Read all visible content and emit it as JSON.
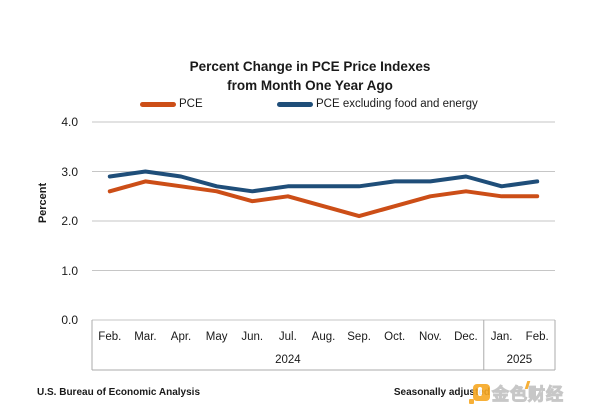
{
  "title": {
    "line1": "Percent Change in PCE Price Indexes",
    "line2": "from Month One Year Ago"
  },
  "y_axis": {
    "label": "Percent"
  },
  "footer": {
    "source": "U.S. Bureau of Economic Analysis",
    "note": "Seasonally adjusted"
  },
  "watermark": {
    "text": "金色财经"
  },
  "colors": {
    "pce": "#CC4E17",
    "core": "#1F4E79",
    "gridline": "#C6C6C6",
    "axis_box": "#ABABAB"
  },
  "chart_data": {
    "type": "line",
    "title": "Percent Change in PCE Price Indexes from Month One Year Ago",
    "xlabel": "",
    "ylabel": "Percent",
    "ylim": [
      0.0,
      4.0
    ],
    "y_ticks": [
      0.0,
      1.0,
      2.0,
      3.0,
      4.0
    ],
    "y_tick_labels": [
      "0.0",
      "1.0",
      "2.0",
      "3.0",
      "4.0"
    ],
    "grid": "horizontal",
    "legend_position": "top",
    "categories": [
      "Feb.",
      "Mar.",
      "Apr.",
      "May",
      "Jun.",
      "Jul.",
      "Aug.",
      "Sep.",
      "Oct.",
      "Nov.",
      "Dec.",
      "Jan.",
      "Feb."
    ],
    "year_groups": [
      {
        "label": "2024",
        "months": 11
      },
      {
        "label": "2025",
        "months": 2
      }
    ],
    "series": [
      {
        "name": "PCE",
        "color": "#CC4E17",
        "values": [
          2.6,
          2.8,
          2.7,
          2.6,
          2.4,
          2.5,
          2.3,
          2.1,
          2.3,
          2.5,
          2.6,
          2.5,
          2.5
        ]
      },
      {
        "name": "PCE excluding food and energy",
        "color": "#1F4E79",
        "values": [
          2.9,
          3.0,
          2.9,
          2.7,
          2.6,
          2.7,
          2.7,
          2.7,
          2.8,
          2.8,
          2.9,
          2.7,
          2.8
        ]
      }
    ]
  }
}
